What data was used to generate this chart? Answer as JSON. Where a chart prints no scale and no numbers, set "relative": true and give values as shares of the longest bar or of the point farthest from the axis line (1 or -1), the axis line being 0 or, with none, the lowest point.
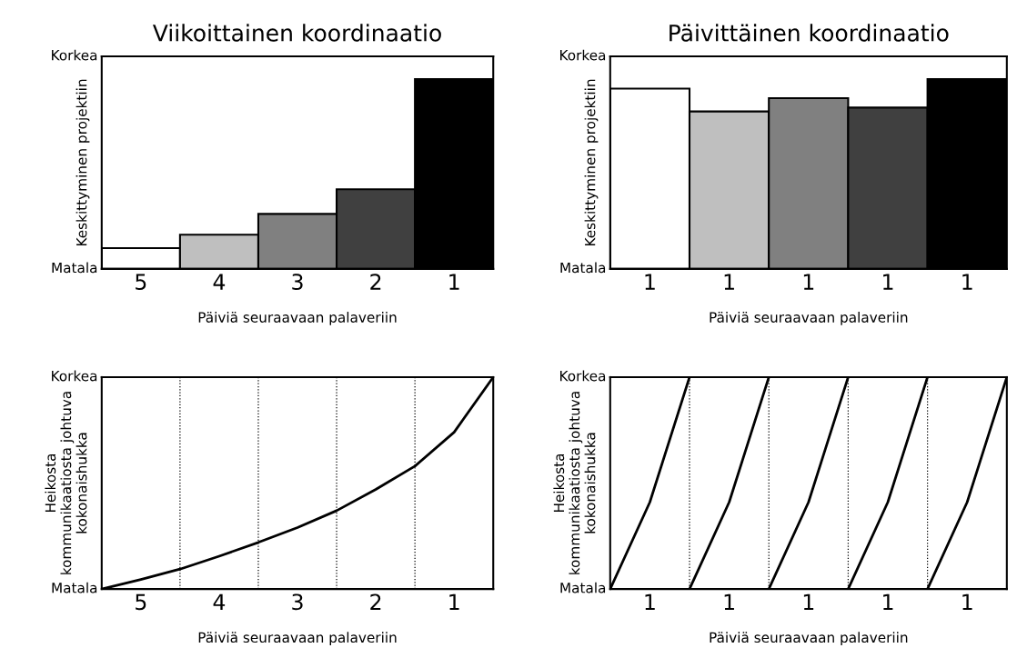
{
  "chart_data": [
    {
      "type": "bar",
      "relative": true,
      "title": "Viikoittainen koordinaatio",
      "xlabel": "Päiviä seuraavaan palaveriin",
      "ylabel": "Keskittyminen projektiin",
      "categories": [
        "5",
        "4",
        "3",
        "2",
        "1"
      ],
      "values": [
        0.11,
        0.18,
        0.29,
        0.42,
        1
      ],
      "colors": [
        "#ffffff",
        "#bfbfbf",
        "#808080",
        "#404040",
        "#000000"
      ],
      "annotations": [
        "Matala",
        "Korkea"
      ]
    },
    {
      "type": "bar",
      "relative": true,
      "title": "Päivittäinen koordinaatio",
      "xlabel": "Päiviä seuraavaan palaveriin",
      "ylabel": "Keskittyminen projektiin",
      "categories": [
        "1",
        "1",
        "1",
        "1",
        "1"
      ],
      "values": [
        0.95,
        0.83,
        0.9,
        0.85,
        1
      ],
      "colors": [
        "#ffffff",
        "#bfbfbf",
        "#808080",
        "#404040",
        "#000000"
      ],
      "annotations": [
        "Matala",
        "Korkea"
      ]
    },
    {
      "type": "line",
      "relative": true,
      "grid": "x",
      "xlabel": "Päiviä seuraavaan palaveriin",
      "ylabel": "Heikosta\nkommunikaatiosta johtuva\nkokonaishukka",
      "categories": [
        null,
        "5",
        null,
        "4",
        null,
        "3",
        null,
        "2",
        null,
        "1",
        null
      ],
      "line_style": "solid",
      "series": [
        {
          "color": "#000000",
          "values": [
            0,
            0.045,
            0.094,
            0.155,
            0.22,
            0.29,
            0.37,
            0.47,
            0.58,
            0.74,
            1.0
          ]
        }
      ],
      "annotations": [
        "Matala",
        "Korkea"
      ]
    },
    {
      "type": "line",
      "relative": true,
      "grid": "x",
      "xlabel": "Päiviä seuraavaan palaveriin",
      "ylabel": "Heikosta\nkommunikaatiosta johtuva\nkokonaishukka",
      "categories": [
        null,
        "1",
        null,
        "1",
        null,
        "1",
        null,
        "1",
        null,
        "1",
        null
      ],
      "line_style": "solid",
      "series": [
        {
          "color": "#000000",
          "values": [
            0,
            0.41,
            1,
            null,
            null,
            null,
            null,
            null,
            null,
            null,
            null
          ]
        },
        {
          "color": "#000000",
          "values": [
            null,
            null,
            0,
            0.41,
            1,
            null,
            null,
            null,
            null,
            null,
            null
          ]
        },
        {
          "color": "#000000",
          "values": [
            null,
            null,
            null,
            null,
            0,
            0.41,
            1,
            null,
            null,
            null,
            null
          ]
        },
        {
          "color": "#000000",
          "values": [
            null,
            null,
            null,
            null,
            null,
            null,
            0,
            0.41,
            1,
            null,
            null
          ]
        },
        {
          "color": "#000000",
          "values": [
            null,
            null,
            null,
            null,
            null,
            null,
            null,
            null,
            0,
            0.41,
            1
          ]
        }
      ],
      "annotations": [
        "Matala",
        "Korkea"
      ]
    }
  ]
}
